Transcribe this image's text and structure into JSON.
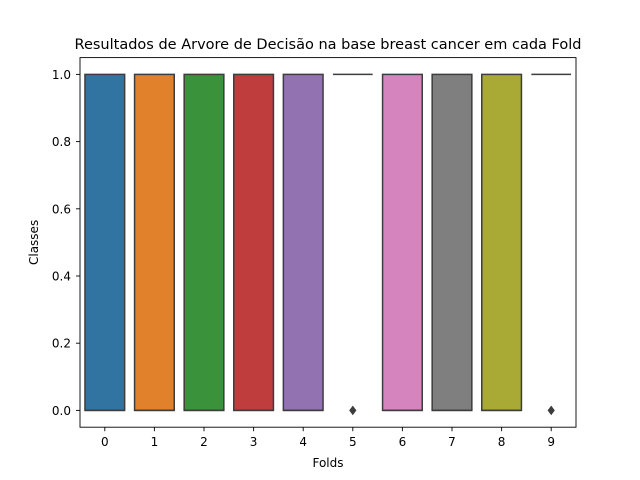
{
  "chart_data": {
    "type": "box",
    "title": "Resultados de Arvore de Decisão na base breast cancer em cada Fold",
    "xlabel": "Folds",
    "ylabel": "Classes",
    "ylim": [
      -0.05,
      1.05
    ],
    "yticks": [
      0.0,
      0.2,
      0.4,
      0.6,
      0.8,
      1.0
    ],
    "ytick_labels": [
      "0.0",
      "0.2",
      "0.4",
      "0.6",
      "0.8",
      "1.0"
    ],
    "categories": [
      "0",
      "1",
      "2",
      "3",
      "4",
      "5",
      "6",
      "7",
      "8",
      "9"
    ],
    "boxes": [
      {
        "fold": "0",
        "q1": 0,
        "median": 0,
        "q3": 1,
        "whisker_low": 0,
        "whisker_high": 1,
        "outliers": []
      },
      {
        "fold": "1",
        "q1": 0,
        "median": 0,
        "q3": 1,
        "whisker_low": 0,
        "whisker_high": 1,
        "outliers": []
      },
      {
        "fold": "2",
        "q1": 0,
        "median": 0,
        "q3": 1,
        "whisker_low": 0,
        "whisker_high": 1,
        "outliers": []
      },
      {
        "fold": "3",
        "q1": 0,
        "median": 0,
        "q3": 1,
        "whisker_low": 0,
        "whisker_high": 1,
        "outliers": []
      },
      {
        "fold": "4",
        "q1": 0,
        "median": 0,
        "q3": 1,
        "whisker_low": 0,
        "whisker_high": 1,
        "outliers": []
      },
      {
        "fold": "5",
        "q1": 1,
        "median": 1,
        "q3": 1,
        "whisker_low": 1,
        "whisker_high": 1,
        "outliers": [
          0
        ]
      },
      {
        "fold": "6",
        "q1": 0,
        "median": 0,
        "q3": 1,
        "whisker_low": 0,
        "whisker_high": 1,
        "outliers": []
      },
      {
        "fold": "7",
        "q1": 0,
        "median": 0,
        "q3": 1,
        "whisker_low": 0,
        "whisker_high": 1,
        "outliers": []
      },
      {
        "fold": "8",
        "q1": 0,
        "median": 0,
        "q3": 1,
        "whisker_low": 0,
        "whisker_high": 1,
        "outliers": []
      },
      {
        "fold": "9",
        "q1": 1,
        "median": 1,
        "q3": 1,
        "whisker_low": 1,
        "whisker_high": 1,
        "outliers": [
          0
        ]
      }
    ],
    "colors": [
      "#3274a1",
      "#e1812c",
      "#3a923a",
      "#c03d3e",
      "#9372b2",
      "#845b53",
      "#d684bd",
      "#7f7f7f",
      "#a9aa35",
      "#2eb0c0"
    ],
    "line_color": "#3d3d3d",
    "grid": false,
    "legend": "none"
  }
}
